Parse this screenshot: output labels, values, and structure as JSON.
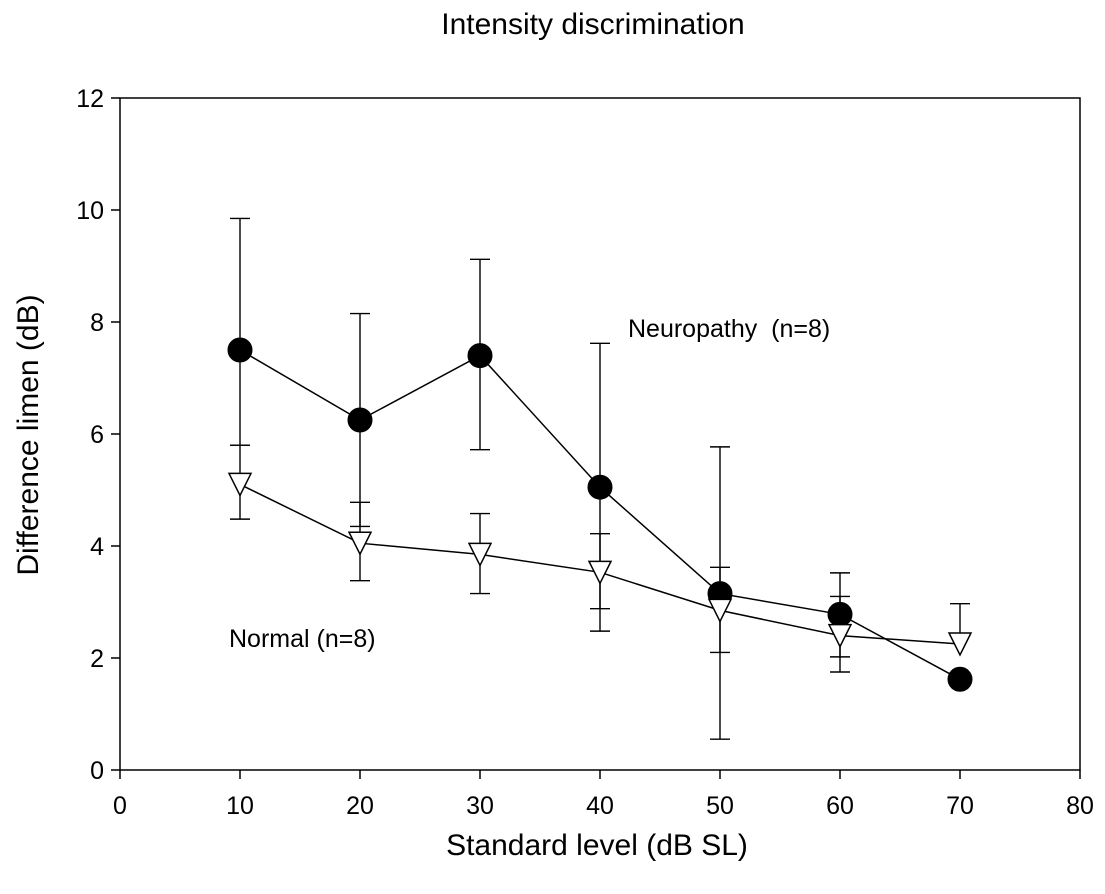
{
  "chart_data": {
    "type": "scatter",
    "title": "Intensity discrimination",
    "xlabel": "Standard level (dB SL)",
    "ylabel": "Difference limen (dB)",
    "xlim": [
      0,
      80
    ],
    "ylim": [
      0,
      12
    ],
    "xticks": [
      0,
      10,
      20,
      30,
      40,
      50,
      60,
      70,
      80
    ],
    "yticks": [
      0,
      2,
      4,
      6,
      8,
      10,
      12
    ],
    "grid": false,
    "series": [
      {
        "name": "Neuropathy (n=8)",
        "label_text": "Neuropathy  (n=8)",
        "marker": "filled-circle",
        "color": "#000000",
        "x": [
          10,
          20,
          30,
          40,
          50,
          60,
          70
        ],
        "y": [
          7.5,
          6.25,
          7.4,
          5.05,
          3.15,
          2.78,
          1.62
        ],
        "err_upper": [
          9.85,
          8.15,
          9.12,
          7.62,
          5.77,
          3.52,
          null
        ],
        "err_lower": [
          5.8,
          4.35,
          5.72,
          2.48,
          0.55,
          2.02,
          null
        ]
      },
      {
        "name": "Normal (n=8)",
        "label_text": "Normal (n=8)",
        "marker": "open-triangle-down",
        "color": "#000000",
        "x": [
          10,
          20,
          30,
          40,
          50,
          60,
          70
        ],
        "y": [
          5.1,
          4.05,
          3.85,
          3.53,
          2.85,
          2.4,
          2.25
        ],
        "err_upper": [
          5.8,
          4.78,
          4.58,
          4.22,
          3.62,
          3.1,
          2.97
        ],
        "err_lower": [
          4.48,
          3.38,
          3.15,
          2.88,
          2.1,
          1.75,
          null
        ]
      }
    ]
  }
}
